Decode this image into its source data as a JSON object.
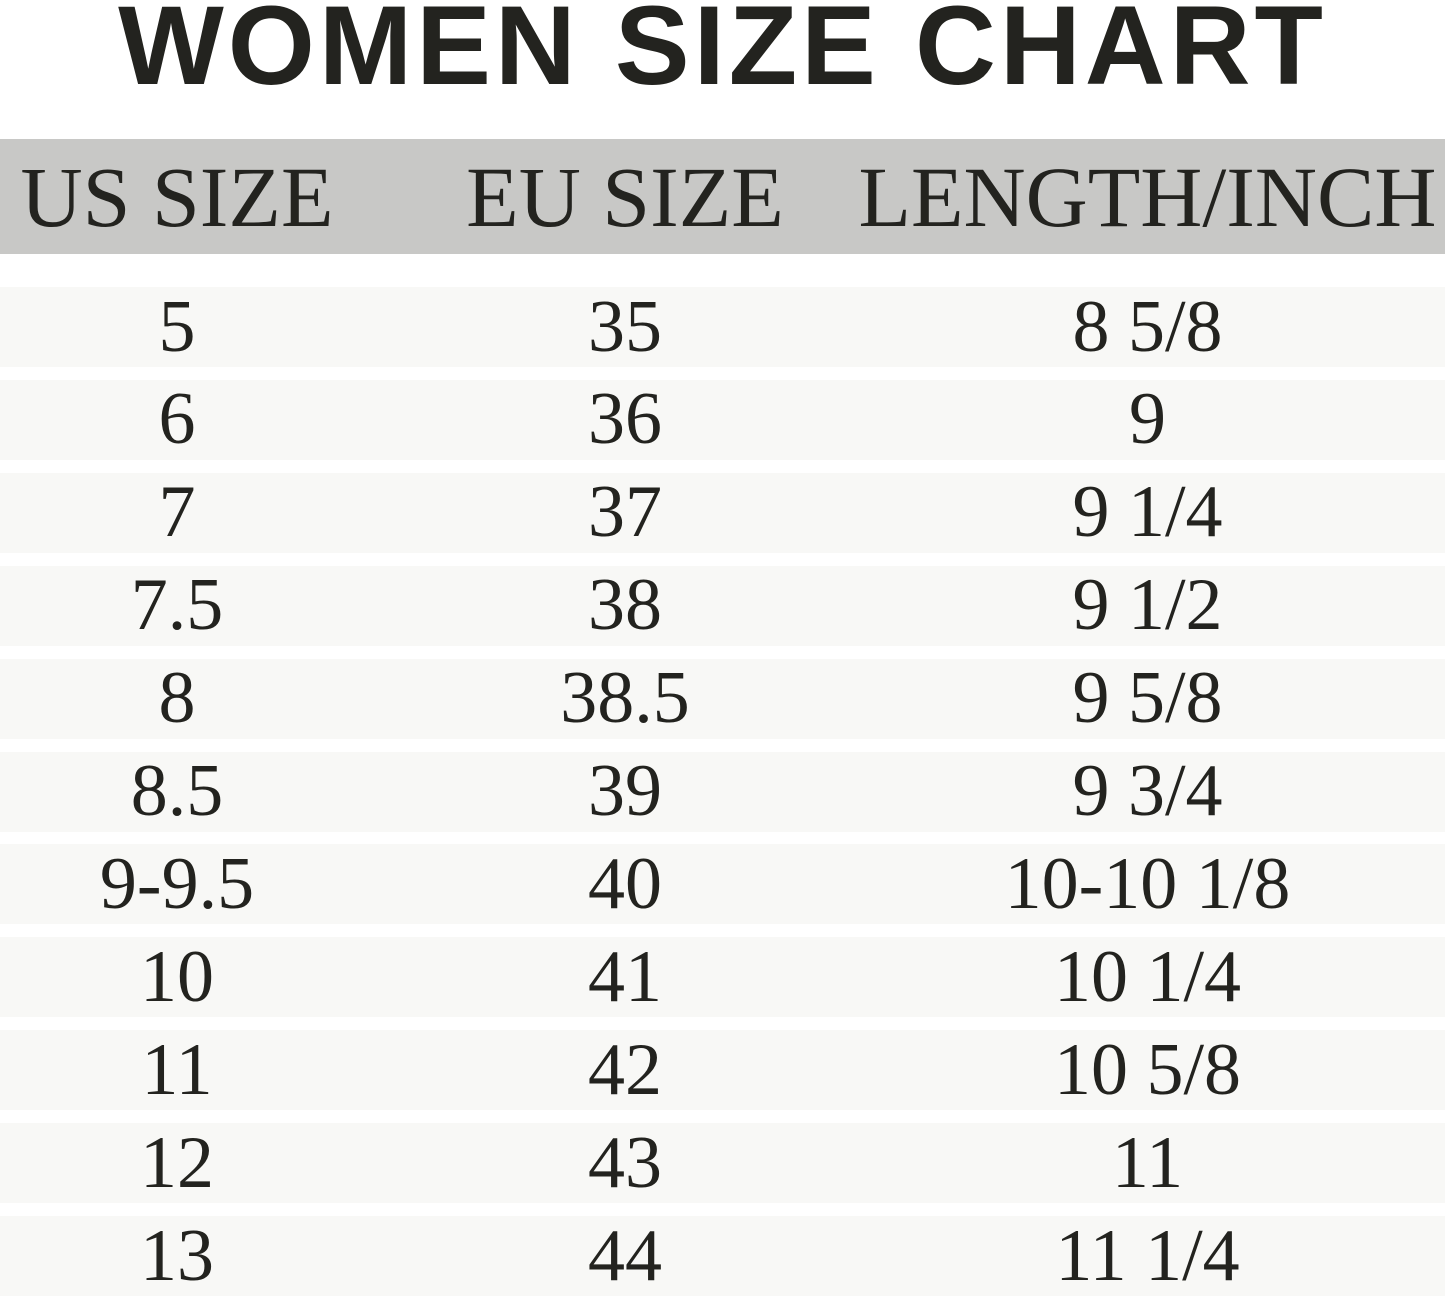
{
  "title": "WOMEN SIZE CHART",
  "colors": {
    "header_bg": "#c8c8c6",
    "row_bg": "#f8f8f6",
    "text": "#23231f"
  },
  "chart_data": {
    "type": "table",
    "title": "WOMEN SIZE CHART",
    "columns": [
      "US SIZE",
      "EU SIZE",
      "LENGTH/INCH"
    ],
    "rows": [
      [
        "5",
        "35",
        "8 5/8"
      ],
      [
        "6",
        "36",
        "9"
      ],
      [
        "7",
        "37",
        "9 1/4"
      ],
      [
        "7.5",
        "38",
        "9 1/2"
      ],
      [
        "8",
        "38.5",
        "9 5/8"
      ],
      [
        "8.5",
        "39",
        "9 3/4"
      ],
      [
        "9-9.5",
        "40",
        "10-10 1/8"
      ],
      [
        "10",
        "41",
        "10 1/4"
      ],
      [
        "11",
        "42",
        "10 5/8"
      ],
      [
        "12",
        "43",
        "11"
      ],
      [
        "13",
        "44",
        "11 1/4"
      ]
    ]
  }
}
